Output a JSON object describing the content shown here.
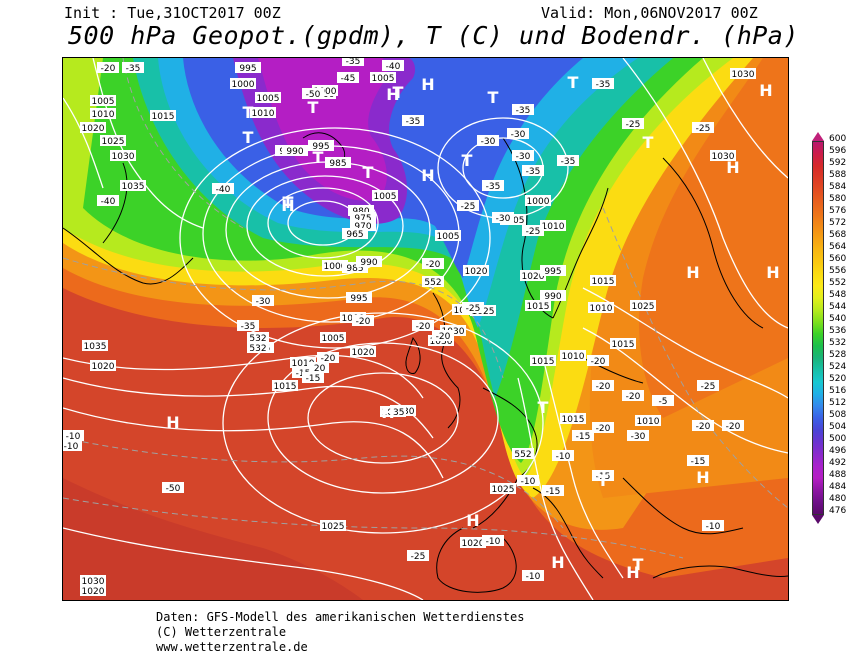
{
  "header": {
    "init": "Init : Tue,31OCT2017 00Z",
    "valid": "Valid: Mon,06NOV2017 00Z",
    "title": "500 hPa Geopot.(gpdm), T (C) und Bodendr. (hPa)"
  },
  "legend": {
    "labels": [
      "600",
      "596",
      "592",
      "588",
      "584",
      "580",
      "576",
      "572",
      "568",
      "564",
      "560",
      "556",
      "552",
      "548",
      "544",
      "540",
      "536",
      "532",
      "528",
      "524",
      "520",
      "516",
      "512",
      "508",
      "504",
      "500",
      "496",
      "492",
      "488",
      "484",
      "480",
      "476"
    ],
    "colors": [
      "#b8186e",
      "#cc1d4a",
      "#d62a2a",
      "#dc3a26",
      "#e24c22",
      "#e8601e",
      "#ee741a",
      "#f28a16",
      "#f6a014",
      "#f8b612",
      "#fac810",
      "#fbdc12",
      "#fcea18",
      "#e2f01c",
      "#b6ea1e",
      "#7ee01e",
      "#3cd228",
      "#1cc04c",
      "#1ab47a",
      "#18c0a8",
      "#18c8d0",
      "#20b0e6",
      "#3488ec",
      "#3a60e6",
      "#4a44d6",
      "#6a34d0",
      "#8a2acc",
      "#a822cc",
      "#b41ec4",
      "#8e16a4",
      "#6e1088",
      "#5a0a6a"
    ]
  },
  "map": {
    "pressure_labels": [
      "995",
      "1000",
      "1005",
      "1010",
      "1015",
      "1020",
      "1025",
      "1030",
      "1035",
      "995",
      "1000",
      "1005",
      "1010",
      "1000",
      "1005",
      "995",
      "990",
      "985",
      "980",
      "975",
      "970",
      "965",
      "1005",
      "1000",
      "985",
      "990",
      "995",
      "1000",
      "1005",
      "1010",
      "1015",
      "1020",
      "1025",
      "1030",
      "1035",
      "1020",
      "1025",
      "1030",
      "1020",
      "1030",
      "1035",
      "1025",
      "1020",
      "1025",
      "1030",
      "1020",
      "1015",
      "1015",
      "1020",
      "1005",
      "1000",
      "1005",
      "1010",
      "1015",
      "1010",
      "1010",
      "1015",
      "1010",
      "1025",
      "1015",
      "1030",
      "1030",
      "995",
      "990"
    ],
    "temp_labels": [
      "-20",
      "-35",
      "-35",
      "-40",
      "-45",
      "-50",
      "-35",
      "-35",
      "-35",
      "-25",
      "-25",
      "-30",
      "-30",
      "-35",
      "-35",
      "-30",
      "-35",
      "-25",
      "-30",
      "-25",
      "-40",
      "-40",
      "-30",
      "-35",
      "-25",
      "-20",
      "-25",
      "-20",
      "-20",
      "-20",
      "-20",
      "-20",
      "-15",
      "-15",
      "-10",
      "-10",
      "-20",
      "-20",
      "-20",
      "-20",
      "-15",
      "-10",
      "-15",
      "-15",
      "-10",
      "-10",
      "-5",
      "-30",
      "-50",
      "-25",
      "-20",
      "-20",
      "-15",
      "-10",
      "-25",
      "-10"
    ],
    "gpdm_labels": [
      "552",
      "532",
      "532",
      "552"
    ],
    "centers": [
      {
        "kind": "H",
        "text": "H"
      },
      {
        "kind": "H",
        "text": "H"
      },
      {
        "kind": "H",
        "text": "H"
      },
      {
        "kind": "H",
        "text": "H"
      },
      {
        "kind": "H",
        "text": "H"
      },
      {
        "kind": "H",
        "text": "H"
      },
      {
        "kind": "H",
        "text": "H"
      },
      {
        "kind": "H",
        "text": "H"
      },
      {
        "kind": "H",
        "text": "H"
      },
      {
        "kind": "H",
        "text": "H"
      },
      {
        "kind": "H",
        "text": "H"
      },
      {
        "kind": "H",
        "text": "H"
      },
      {
        "kind": "H",
        "text": "H"
      },
      {
        "kind": "H",
        "text": "H"
      },
      {
        "kind": "T",
        "text": "T"
      },
      {
        "kind": "T",
        "text": "T"
      },
      {
        "kind": "T",
        "text": "T"
      },
      {
        "kind": "T",
        "text": "T"
      },
      {
        "kind": "T",
        "text": "T"
      },
      {
        "kind": "T",
        "text": "T"
      },
      {
        "kind": "T",
        "text": "T"
      },
      {
        "kind": "T",
        "text": "T"
      },
      {
        "kind": "T",
        "text": "T"
      },
      {
        "kind": "T",
        "text": "T"
      },
      {
        "kind": "T",
        "text": "T"
      },
      {
        "kind": "T",
        "text": "T"
      },
      {
        "kind": "T",
        "text": "T"
      },
      {
        "kind": "T",
        "text": "T"
      }
    ]
  },
  "footer": {
    "line1": "Daten: GFS-Modell des amerikanischen Wetterdienstes",
    "line2": "(C) Wetterzentrale",
    "line3": "www.wetterzentrale.de"
  }
}
